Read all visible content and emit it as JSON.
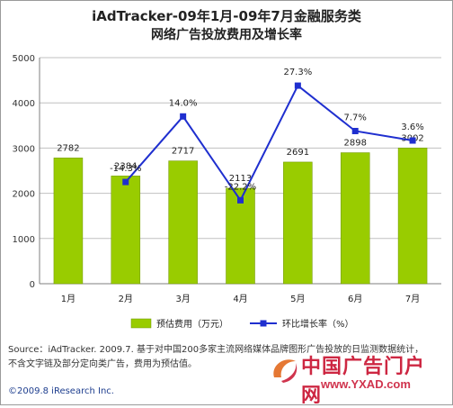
{
  "title_line1": "iAdTracker-09年1月-09年7月金融服务类",
  "title_line2": "网络广告投放费用及增长率",
  "source_line1": "Source：iAdTracker. 2009.7. 基于对中国200多家主流网络媒体品牌图形广告投放的日监测数据统计，",
  "source_line2": "不含文字链及部分定向类广告，费用为预估值。",
  "copyright": "©2009.8 iResearch Inc.",
  "watermark": {
    "name": "中国广告门户网",
    "url": "www.YXAD.com"
  },
  "colors": {
    "bar": "#99cc00",
    "bar_edge": "#6f9400",
    "line": "#1f2fcf",
    "grid": "#c0c0c0",
    "axis": "#7f7f7f"
  },
  "chart_data": {
    "type": "bar",
    "categories": [
      "1月",
      "2月",
      "3月",
      "4月",
      "5月",
      "6月",
      "7月"
    ],
    "ylim": [
      0,
      5000
    ],
    "yticks": [
      0,
      1000,
      2000,
      3000,
      4000,
      5000
    ],
    "grid": true,
    "legend": "bottom",
    "series": [
      {
        "name": "预估费用（万元）",
        "type": "bar",
        "values": [
          2782,
          2384,
          2717,
          2113,
          2691,
          2898,
          3002
        ],
        "labels": [
          "2782",
          "2384",
          "2717",
          "2113",
          "2691",
          "2898",
          "3002"
        ]
      },
      {
        "name": "环比增长率（%）",
        "type": "line",
        "values": [
          null,
          -14.3,
          14.0,
          -22.2,
          27.3,
          7.7,
          3.6
        ],
        "labels": [
          "",
          "-14.3%",
          "14.0%",
          "-22.2%",
          "27.3%",
          "7.7%",
          "3.6%"
        ]
      }
    ]
  }
}
